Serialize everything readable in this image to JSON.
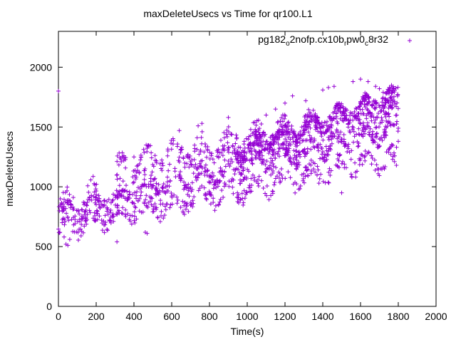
{
  "chart_data": {
    "type": "scatter",
    "title": "maxDeleteUsecs vs Time for qr100.L1",
    "xlabel": "Time(s)",
    "ylabel": "maxDeleteUsecs",
    "xlim": [
      0,
      2000
    ],
    "ylim": [
      0,
      2300
    ],
    "xticks": [
      "0",
      "200",
      "400",
      "600",
      "800",
      "1000",
      "1200",
      "1400",
      "1600",
      "1800",
      "2000"
    ],
    "yticks": [
      "0",
      "500",
      "1000",
      "1500",
      "2000"
    ],
    "grid": false,
    "legend_position": "top-right",
    "marker": "+",
    "color": "#9400d3",
    "legend": {
      "parts": [
        "pg182",
        "o",
        "2nofp.cx10b",
        "r",
        "pw0",
        "c",
        "8r32"
      ]
    },
    "series": [
      {
        "name": "pg182_o2nofp.cx10b_rpw0_c8r32",
        "bands": [
          {
            "x0": 0,
            "x1": 1800,
            "y0": 820,
            "y1": 1540,
            "spread": 180
          },
          {
            "x0": 0,
            "x1": 1800,
            "y0": 780,
            "y1": 1480,
            "spread": 110
          },
          {
            "x0": 0,
            "x1": 1800,
            "y0": 650,
            "y1": 1250,
            "spread": 120
          },
          {
            "x0": 300,
            "x1": 1800,
            "y0": 1150,
            "y1": 1680,
            "spread": 140
          },
          {
            "x0": 900,
            "x1": 1800,
            "y0": 1250,
            "y1": 1780,
            "spread": 100
          }
        ],
        "points": [
          [
            0,
            1800
          ],
          [
            10,
            900
          ],
          [
            20,
            700
          ],
          [
            30,
            580
          ],
          [
            40,
            520
          ],
          [
            50,
            510
          ],
          [
            60,
            560
          ],
          [
            120,
            590
          ],
          [
            310,
            540
          ],
          [
            380,
            760
          ],
          [
            400,
            1250
          ],
          [
            460,
            620
          ],
          [
            470,
            610
          ],
          [
            520,
            1200
          ],
          [
            580,
            1300
          ],
          [
            640,
            1470
          ],
          [
            740,
            1510
          ],
          [
            760,
            1530
          ],
          [
            900,
            1580
          ],
          [
            1040,
            1540
          ],
          [
            1100,
            1600
          ],
          [
            1150,
            1650
          ],
          [
            1200,
            1700
          ],
          [
            1240,
            1760
          ],
          [
            1310,
            1720
          ],
          [
            1350,
            1640
          ],
          [
            1400,
            1810
          ],
          [
            1430,
            1830
          ],
          [
            1460,
            1840
          ],
          [
            1500,
            950
          ],
          [
            1560,
            1880
          ],
          [
            1600,
            1900
          ],
          [
            1640,
            1880
          ],
          [
            1680,
            1840
          ],
          [
            1700,
            1820
          ],
          [
            1720,
            1790
          ],
          [
            1750,
            1800
          ],
          [
            1760,
            1750
          ],
          [
            1770,
            1230
          ],
          [
            1780,
            1210
          ],
          [
            1790,
            1180
          ],
          [
            1550,
            1230
          ],
          [
            1570,
            1200
          ],
          [
            1620,
            1250
          ],
          [
            1800,
            1380
          ],
          [
            1800,
            1490
          ]
        ],
        "count": 1800
      }
    ]
  }
}
